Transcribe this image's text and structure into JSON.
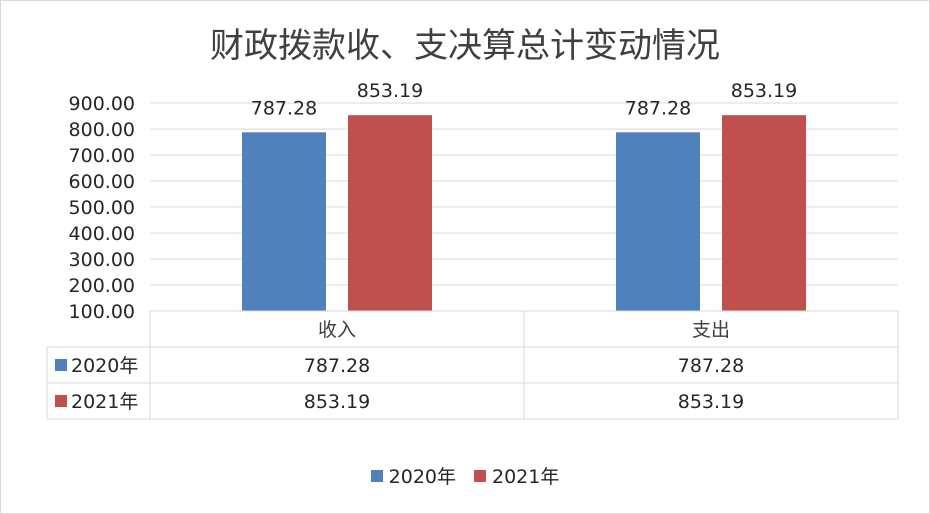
{
  "chart_data": {
    "type": "bar",
    "title": "财政拨款收、支决算总计变动情况",
    "categories": [
      "收入",
      "支出"
    ],
    "series": [
      {
        "name": "2020年",
        "values": [
          787.28,
          787.28
        ],
        "color": "#4F81BD"
      },
      {
        "name": "2021年",
        "values": [
          853.19,
          853.19
        ],
        "color": "#C0504D"
      }
    ],
    "ylim": [
      100,
      900
    ],
    "yticks": [
      "900.00",
      "800.00",
      "700.00",
      "600.00",
      "500.00",
      "400.00",
      "300.00",
      "200.00",
      "100.00"
    ],
    "data_labels": true,
    "data_table": true,
    "legend": "bottom",
    "grid": true
  }
}
